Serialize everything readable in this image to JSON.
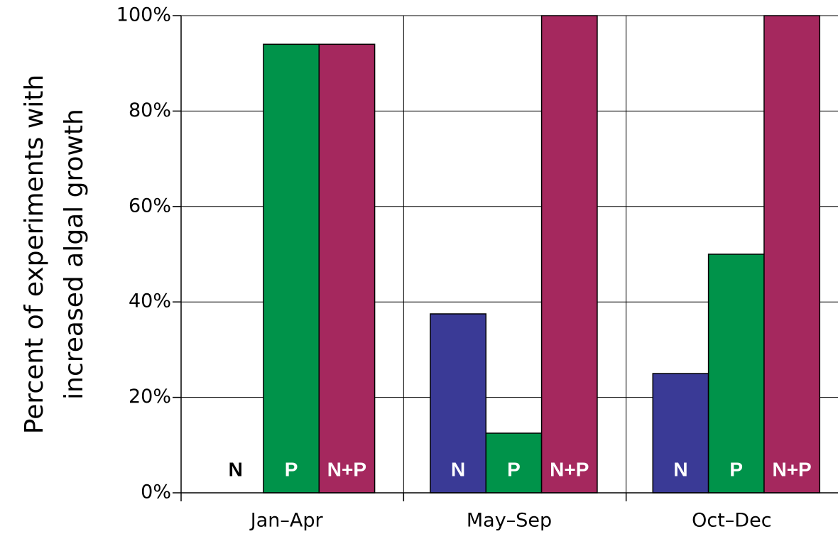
{
  "chart_data": {
    "type": "bar",
    "y_label": [
      "Percent of experiments with",
      "increased algal growth"
    ],
    "categories": [
      "Jan–Apr",
      "May–Sep",
      "Oct–Dec"
    ],
    "series": [
      {
        "name": "N",
        "color": "#3a3a96",
        "values": [
          0,
          37.5,
          25
        ]
      },
      {
        "name": "P",
        "color": "#00934a",
        "values": [
          94,
          12.5,
          50
        ]
      },
      {
        "name": "N+P",
        "color": "#a5285e",
        "values": [
          94,
          100,
          100
        ]
      }
    ],
    "ylim": [
      0,
      100
    ],
    "yticks": [
      {
        "value": 0,
        "label": "0%"
      },
      {
        "value": 20,
        "label": "20%"
      },
      {
        "value": 40,
        "label": "40%"
      },
      {
        "value": 60,
        "label": "60%"
      },
      {
        "value": 80,
        "label": "80%"
      },
      {
        "value": 100,
        "label": "100%"
      }
    ],
    "grid": true
  }
}
